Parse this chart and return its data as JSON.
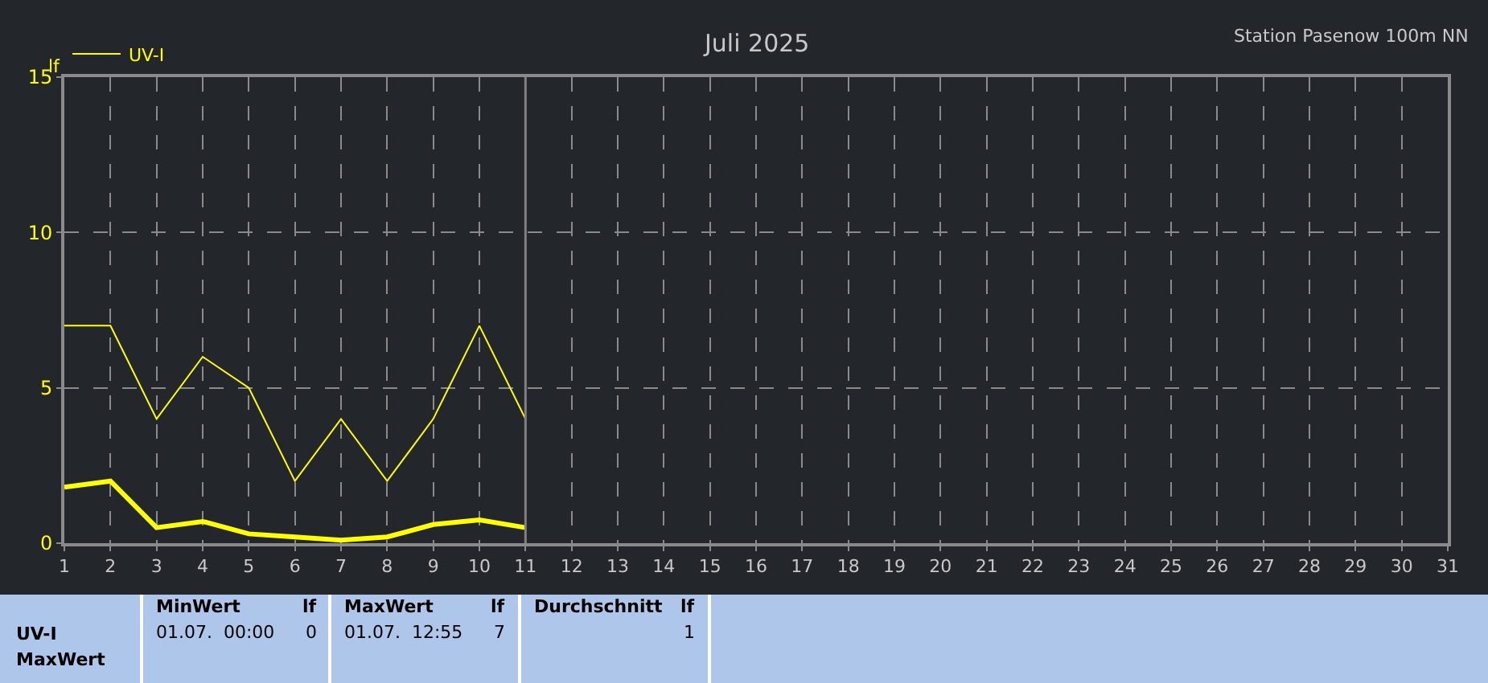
{
  "chart_data": {
    "type": "line",
    "title": "Juli 2025",
    "subtitle": "Station Pasenow 100m NN",
    "ylabel": "lf",
    "x": [
      1,
      2,
      3,
      4,
      5,
      6,
      7,
      8,
      9,
      10,
      11
    ],
    "series": [
      {
        "name": "UV-I",
        "color": "#ffff00",
        "values": [
          7,
          7,
          4,
          6,
          5,
          2,
          4,
          2,
          4,
          7,
          4
        ]
      },
      {
        "color": "#ffff00",
        "values": [
          1.8,
          2.0,
          0.5,
          0.7,
          0.3,
          0.2,
          0.1,
          0.2,
          0.6,
          0.75,
          0.5
        ]
      }
    ],
    "xlim": [
      1,
      31
    ],
    "xticks": [
      1,
      2,
      3,
      4,
      5,
      6,
      7,
      8,
      9,
      10,
      11,
      12,
      13,
      14,
      15,
      16,
      17,
      18,
      19,
      20,
      21,
      22,
      23,
      24,
      25,
      26,
      27,
      28,
      29,
      30,
      31
    ],
    "ylim": [
      0,
      15
    ],
    "yticks": [
      0,
      5,
      10,
      15
    ],
    "ref_lines": [
      {
        "axis": "x",
        "value": 11,
        "color": "#808080",
        "line_style": "solid"
      }
    ],
    "grid": true,
    "legend": "top left",
    "marker": "none",
    "line_style": "solid",
    "annotations": [
      "UV-I",
      "MaxWert",
      "MinWert",
      "lf",
      "01.07.  00:00",
      "0",
      "MaxWert",
      "lf",
      "01.07.  12:55",
      "7",
      "Durchschnitt",
      "lf",
      "1"
    ]
  }
}
